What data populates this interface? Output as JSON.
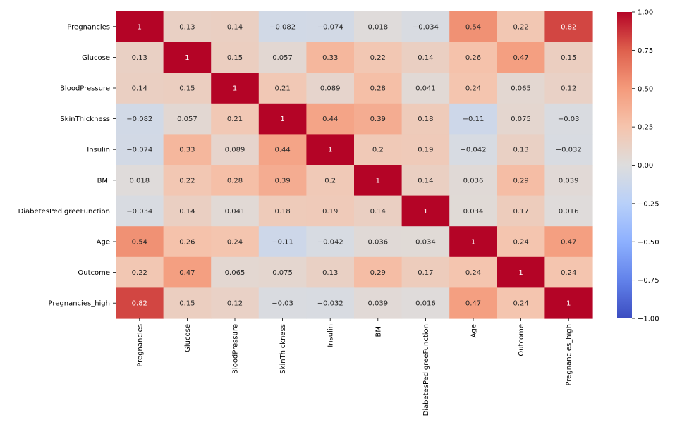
{
  "chart_data": {
    "type": "heatmap",
    "title": "",
    "xlabel": "",
    "ylabel": "",
    "colormap": "coolwarm",
    "row_labels": [
      "Pregnancies",
      "Glucose",
      "BloodPressure",
      "SkinThickness",
      "Insulin",
      "BMI",
      "DiabetesPedigreeFunction",
      "Age",
      "Outcome",
      "Pregnancies_high"
    ],
    "col_labels": [
      "Pregnancies",
      "Glucose",
      "BloodPressure",
      "SkinThickness",
      "Insulin",
      "BMI",
      "DiabetesPedigreeFunction",
      "Age",
      "Outcome",
      "Pregnancies_high"
    ],
    "values": [
      [
        1,
        0.13,
        0.14,
        -0.082,
        -0.074,
        0.018,
        -0.034,
        0.54,
        0.22,
        0.82
      ],
      [
        0.13,
        1,
        0.15,
        0.057,
        0.33,
        0.22,
        0.14,
        0.26,
        0.47,
        0.15
      ],
      [
        0.14,
        0.15,
        1,
        0.21,
        0.089,
        0.28,
        0.041,
        0.24,
        0.065,
        0.12
      ],
      [
        -0.082,
        0.057,
        0.21,
        1,
        0.44,
        0.39,
        0.18,
        -0.11,
        0.075,
        -0.03
      ],
      [
        -0.074,
        0.33,
        0.089,
        0.44,
        1,
        0.2,
        0.19,
        -0.042,
        0.13,
        -0.032
      ],
      [
        0.018,
        0.22,
        0.28,
        0.39,
        0.2,
        1,
        0.14,
        0.036,
        0.29,
        0.039
      ],
      [
        -0.034,
        0.14,
        0.041,
        0.18,
        0.19,
        0.14,
        1,
        0.034,
        0.17,
        0.016
      ],
      [
        0.54,
        0.26,
        0.24,
        -0.11,
        -0.042,
        0.036,
        0.034,
        1,
        0.24,
        0.47
      ],
      [
        0.22,
        0.47,
        0.065,
        0.075,
        0.13,
        0.29,
        0.17,
        0.24,
        1,
        0.24
      ],
      [
        0.82,
        0.15,
        0.12,
        -0.03,
        -0.032,
        0.039,
        0.016,
        0.47,
        0.24,
        1
      ]
    ],
    "value_range": [
      -1,
      1
    ],
    "colorbar": {
      "ticks": [
        1.0,
        0.75,
        0.5,
        0.25,
        0.0,
        -0.25,
        -0.5,
        -0.75,
        -1.0
      ],
      "tick_labels": [
        "1.00",
        "0.75",
        "0.50",
        "0.25",
        "0.00",
        "−0.25",
        "−0.50",
        "−0.75",
        "−1.00"
      ]
    },
    "annotations": true,
    "grid": false
  }
}
